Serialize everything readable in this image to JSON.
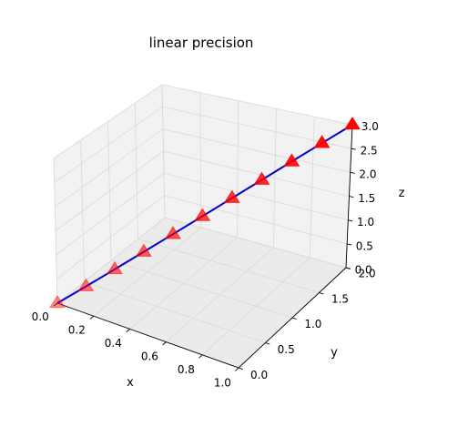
{
  "chart_data": {
    "type": "line",
    "projection": "3d",
    "title": "linear precision",
    "xlabel": "x",
    "ylabel": "y",
    "zlabel": "z",
    "xlim": [
      0.0,
      1.0
    ],
    "ylim": [
      0.0,
      2.0
    ],
    "zlim": [
      0.0,
      3.0
    ],
    "xticks": [
      "0.0",
      "0.2",
      "0.4",
      "0.6",
      "0.8",
      "1.0"
    ],
    "yticks": [
      "0.0",
      "0.5",
      "1.0",
      "1.5",
      "2.0"
    ],
    "zticks": [
      "0.0",
      "0.5",
      "1.0",
      "1.5",
      "2.0",
      "2.5",
      "3.0"
    ],
    "grid": true,
    "series": [
      {
        "kind": "line",
        "color": "#0000cc",
        "x": [
          0.0,
          0.1,
          0.2,
          0.3,
          0.4,
          0.5,
          0.6,
          0.7,
          0.8,
          0.9,
          1.0
        ],
        "y": [
          0.0,
          0.2,
          0.4,
          0.6,
          0.8,
          1.0,
          1.2,
          1.4,
          1.6,
          1.8,
          2.0
        ],
        "z": [
          0.0,
          0.3,
          0.6,
          0.9,
          1.2,
          1.5,
          1.8,
          2.1,
          2.4,
          2.7,
          3.0
        ]
      },
      {
        "kind": "scatter",
        "marker": "triangle-up",
        "color": "#ff0000",
        "x": [
          0.0,
          0.1,
          0.2,
          0.3,
          0.4,
          0.5,
          0.6,
          0.7,
          0.8,
          0.9,
          1.0
        ],
        "y": [
          0.0,
          0.2,
          0.4,
          0.6,
          0.8,
          1.0,
          1.2,
          1.4,
          1.6,
          1.8,
          2.0
        ],
        "z": [
          0.0,
          0.3,
          0.6,
          0.9,
          1.2,
          1.5,
          1.8,
          2.1,
          2.4,
          2.7,
          3.0
        ]
      }
    ]
  }
}
